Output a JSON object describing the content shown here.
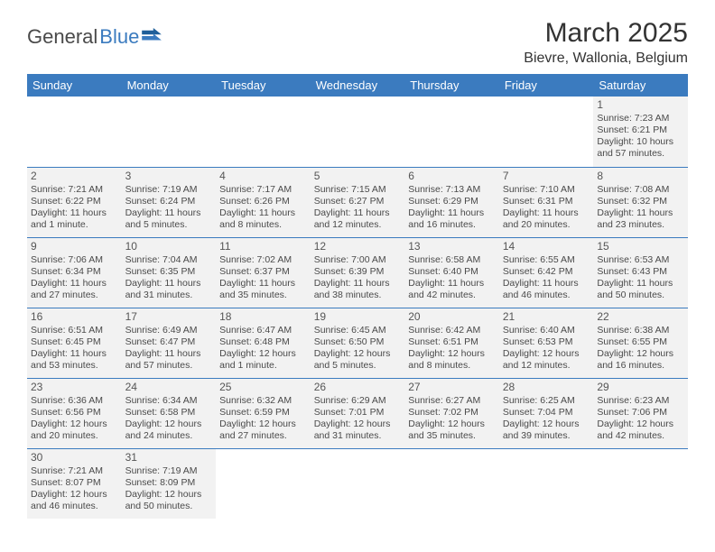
{
  "brand": {
    "part1": "General",
    "part2": "Blue"
  },
  "title": "March 2025",
  "location": "Bievre, Wallonia, Belgium",
  "colors": {
    "header_bg": "#3b7bbf",
    "header_text": "#ffffff",
    "cell_bg": "#f2f2f2",
    "border": "#3b7bbf",
    "text": "#4a4a4a"
  },
  "days_of_week": [
    "Sunday",
    "Monday",
    "Tuesday",
    "Wednesday",
    "Thursday",
    "Friday",
    "Saturday"
  ],
  "weeks": [
    [
      null,
      null,
      null,
      null,
      null,
      null,
      {
        "n": "1",
        "sr": "Sunrise: 7:23 AM",
        "ss": "Sunset: 6:21 PM",
        "dl": "Daylight: 10 hours and 57 minutes."
      }
    ],
    [
      {
        "n": "2",
        "sr": "Sunrise: 7:21 AM",
        "ss": "Sunset: 6:22 PM",
        "dl": "Daylight: 11 hours and 1 minute."
      },
      {
        "n": "3",
        "sr": "Sunrise: 7:19 AM",
        "ss": "Sunset: 6:24 PM",
        "dl": "Daylight: 11 hours and 5 minutes."
      },
      {
        "n": "4",
        "sr": "Sunrise: 7:17 AM",
        "ss": "Sunset: 6:26 PM",
        "dl": "Daylight: 11 hours and 8 minutes."
      },
      {
        "n": "5",
        "sr": "Sunrise: 7:15 AM",
        "ss": "Sunset: 6:27 PM",
        "dl": "Daylight: 11 hours and 12 minutes."
      },
      {
        "n": "6",
        "sr": "Sunrise: 7:13 AM",
        "ss": "Sunset: 6:29 PM",
        "dl": "Daylight: 11 hours and 16 minutes."
      },
      {
        "n": "7",
        "sr": "Sunrise: 7:10 AM",
        "ss": "Sunset: 6:31 PM",
        "dl": "Daylight: 11 hours and 20 minutes."
      },
      {
        "n": "8",
        "sr": "Sunrise: 7:08 AM",
        "ss": "Sunset: 6:32 PM",
        "dl": "Daylight: 11 hours and 23 minutes."
      }
    ],
    [
      {
        "n": "9",
        "sr": "Sunrise: 7:06 AM",
        "ss": "Sunset: 6:34 PM",
        "dl": "Daylight: 11 hours and 27 minutes."
      },
      {
        "n": "10",
        "sr": "Sunrise: 7:04 AM",
        "ss": "Sunset: 6:35 PM",
        "dl": "Daylight: 11 hours and 31 minutes."
      },
      {
        "n": "11",
        "sr": "Sunrise: 7:02 AM",
        "ss": "Sunset: 6:37 PM",
        "dl": "Daylight: 11 hours and 35 minutes."
      },
      {
        "n": "12",
        "sr": "Sunrise: 7:00 AM",
        "ss": "Sunset: 6:39 PM",
        "dl": "Daylight: 11 hours and 38 minutes."
      },
      {
        "n": "13",
        "sr": "Sunrise: 6:58 AM",
        "ss": "Sunset: 6:40 PM",
        "dl": "Daylight: 11 hours and 42 minutes."
      },
      {
        "n": "14",
        "sr": "Sunrise: 6:55 AM",
        "ss": "Sunset: 6:42 PM",
        "dl": "Daylight: 11 hours and 46 minutes."
      },
      {
        "n": "15",
        "sr": "Sunrise: 6:53 AM",
        "ss": "Sunset: 6:43 PM",
        "dl": "Daylight: 11 hours and 50 minutes."
      }
    ],
    [
      {
        "n": "16",
        "sr": "Sunrise: 6:51 AM",
        "ss": "Sunset: 6:45 PM",
        "dl": "Daylight: 11 hours and 53 minutes."
      },
      {
        "n": "17",
        "sr": "Sunrise: 6:49 AM",
        "ss": "Sunset: 6:47 PM",
        "dl": "Daylight: 11 hours and 57 minutes."
      },
      {
        "n": "18",
        "sr": "Sunrise: 6:47 AM",
        "ss": "Sunset: 6:48 PM",
        "dl": "Daylight: 12 hours and 1 minute."
      },
      {
        "n": "19",
        "sr": "Sunrise: 6:45 AM",
        "ss": "Sunset: 6:50 PM",
        "dl": "Daylight: 12 hours and 5 minutes."
      },
      {
        "n": "20",
        "sr": "Sunrise: 6:42 AM",
        "ss": "Sunset: 6:51 PM",
        "dl": "Daylight: 12 hours and 8 minutes."
      },
      {
        "n": "21",
        "sr": "Sunrise: 6:40 AM",
        "ss": "Sunset: 6:53 PM",
        "dl": "Daylight: 12 hours and 12 minutes."
      },
      {
        "n": "22",
        "sr": "Sunrise: 6:38 AM",
        "ss": "Sunset: 6:55 PM",
        "dl": "Daylight: 12 hours and 16 minutes."
      }
    ],
    [
      {
        "n": "23",
        "sr": "Sunrise: 6:36 AM",
        "ss": "Sunset: 6:56 PM",
        "dl": "Daylight: 12 hours and 20 minutes."
      },
      {
        "n": "24",
        "sr": "Sunrise: 6:34 AM",
        "ss": "Sunset: 6:58 PM",
        "dl": "Daylight: 12 hours and 24 minutes."
      },
      {
        "n": "25",
        "sr": "Sunrise: 6:32 AM",
        "ss": "Sunset: 6:59 PM",
        "dl": "Daylight: 12 hours and 27 minutes."
      },
      {
        "n": "26",
        "sr": "Sunrise: 6:29 AM",
        "ss": "Sunset: 7:01 PM",
        "dl": "Daylight: 12 hours and 31 minutes."
      },
      {
        "n": "27",
        "sr": "Sunrise: 6:27 AM",
        "ss": "Sunset: 7:02 PM",
        "dl": "Daylight: 12 hours and 35 minutes."
      },
      {
        "n": "28",
        "sr": "Sunrise: 6:25 AM",
        "ss": "Sunset: 7:04 PM",
        "dl": "Daylight: 12 hours and 39 minutes."
      },
      {
        "n": "29",
        "sr": "Sunrise: 6:23 AM",
        "ss": "Sunset: 7:06 PM",
        "dl": "Daylight: 12 hours and 42 minutes."
      }
    ],
    [
      {
        "n": "30",
        "sr": "Sunrise: 7:21 AM",
        "ss": "Sunset: 8:07 PM",
        "dl": "Daylight: 12 hours and 46 minutes."
      },
      {
        "n": "31",
        "sr": "Sunrise: 7:19 AM",
        "ss": "Sunset: 8:09 PM",
        "dl": "Daylight: 12 hours and 50 minutes."
      },
      null,
      null,
      null,
      null,
      null
    ]
  ]
}
